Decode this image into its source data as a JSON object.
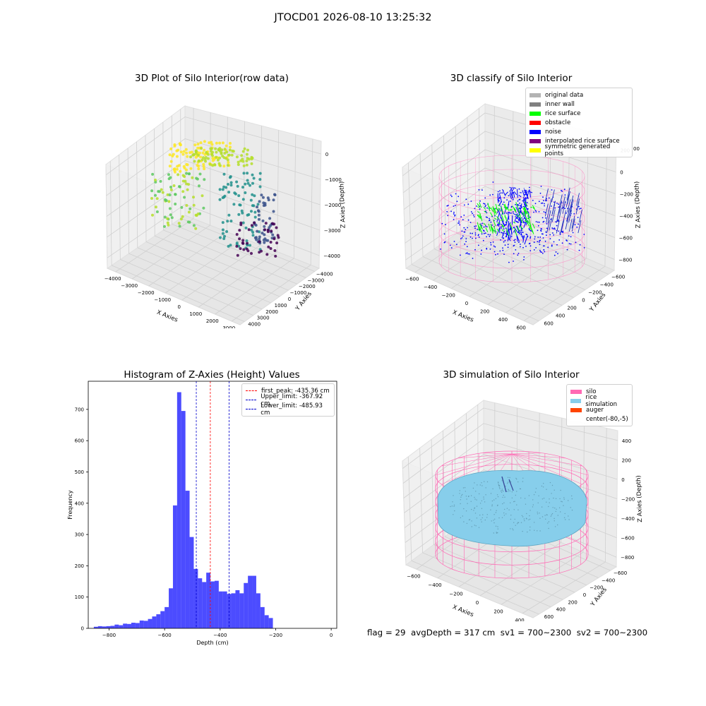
{
  "suptitle": "JTOCD01 2026-08-10 13:25:32",
  "footer": "flag = 29  avgDepth = 317 cm  sv1 = 700~2300  sv2 = 700~2300",
  "chart_data": [
    {
      "type": "scatter",
      "title": "3D Plot of Silo Interior(row data)",
      "xlabel": "X Axies",
      "ylabel": "Y Axies",
      "zlabel": "Z Axies (Depth)",
      "x_ticks": [
        "−4000",
        "−3000",
        "−2000",
        "−1000",
        "0",
        "1000",
        "2000",
        "3000"
      ],
      "y_ticks": [
        "−4000",
        "−3000",
        "−2000",
        "−1000",
        "0",
        "1000",
        "2000",
        "3000",
        "4000"
      ],
      "z_ticks": [
        "0",
        "−1000",
        "−2000",
        "−3000",
        "−4000"
      ],
      "colormap": "viridis"
    },
    {
      "type": "scatter",
      "title": "3D classify of Silo Interior",
      "xlabel": "X Axies",
      "ylabel": "Y Axies",
      "zlabel": "Z Axies (Depth)",
      "x_ticks": [
        "−600",
        "−400",
        "−200",
        "0",
        "200",
        "400",
        "600"
      ],
      "y_ticks": [
        "−600",
        "−400",
        "−200",
        "0",
        "200",
        "400",
        "600"
      ],
      "z_ticks": [
        "200",
        "0",
        "−200",
        "−400",
        "−600",
        "−800"
      ],
      "z_top_partial": "00",
      "legend": [
        {
          "label": "original data",
          "color": "#b3b3b3"
        },
        {
          "label": "inner wall",
          "color": "#808080"
        },
        {
          "label": "rice surface",
          "color": "#00ff00"
        },
        {
          "label": "obstacle",
          "color": "#ff0000"
        },
        {
          "label": "noise",
          "color": "#0000ff"
        },
        {
          "label": "interpolated rice surface",
          "color": "#800080"
        },
        {
          "label": "symmetric generated points",
          "color": "#ffff00"
        }
      ]
    },
    {
      "type": "bar",
      "title": "Histogram of Z-Axies (Height) Values",
      "xlabel": "Depth (cm)",
      "ylabel": "Frequency",
      "xlim": [
        -875,
        20
      ],
      "ylim": [
        0,
        790
      ],
      "x_ticks": [
        -800,
        -600,
        -400,
        -200,
        0
      ],
      "x_tick_labels": [
        "−800",
        "−600",
        "−400",
        "−200",
        "0"
      ],
      "y_ticks": [
        0,
        100,
        200,
        300,
        400,
        500,
        600,
        700
      ],
      "bin_start": -855,
      "bin_width": 15,
      "values": [
        5,
        7,
        6,
        7,
        8,
        12,
        10,
        15,
        14,
        18,
        17,
        25,
        24,
        30,
        38,
        45,
        55,
        68,
        128,
        393,
        755,
        695,
        440,
        292,
        190,
        160,
        148,
        178,
        150,
        152,
        118,
        118,
        110,
        112,
        122,
        112,
        145,
        168,
        168,
        112,
        68,
        42,
        33
      ],
      "bar_color": "#0000ff",
      "lines": [
        {
          "label": "first_peak: -435.36 cm",
          "x": -435.36,
          "color": "#ff0000"
        },
        {
          "label": "Upper_limit: -367.92 cm",
          "x": -367.92,
          "color": "#0000cc"
        },
        {
          "label": "Lower_limit: -485.93 cm",
          "x": -485.93,
          "color": "#0000cc"
        }
      ]
    },
    {
      "type": "scatter",
      "title": "3D simulation of Silo Interior",
      "xlabel": "X Axies",
      "ylabel": "Y Axies",
      "zlabel": "Z Axies (Depth)",
      "x_ticks": [
        "−600",
        "−400",
        "−200",
        "0",
        "200",
        "400"
      ],
      "y_ticks": [
        "−600",
        "−400",
        "−200",
        "0",
        "200",
        "400",
        "600"
      ],
      "z_ticks": [
        "400",
        "200",
        "0",
        "−200",
        "−400",
        "−600",
        "−800"
      ],
      "legend": [
        {
          "label": "silo",
          "color": "#ff69b4"
        },
        {
          "label": "rice simulation",
          "color": "#87ceeb"
        },
        {
          "label": "auger",
          "color": "#ff4500"
        },
        {
          "label": "center(-80,-5)",
          "color": "#ffffff"
        }
      ]
    }
  ]
}
